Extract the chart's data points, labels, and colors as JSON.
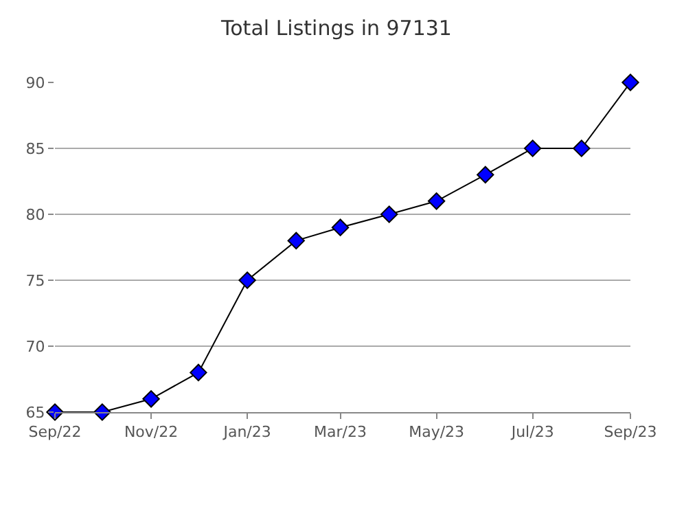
{
  "chart_data": {
    "type": "line",
    "title": "Total Listings in 97131",
    "x": [
      "2022-09",
      "2022-10",
      "2022-11",
      "2022-12",
      "2023-01",
      "2023-02",
      "2023-03",
      "2023-04",
      "2023-05",
      "2023-06",
      "2023-07",
      "2023-08",
      "2023-09"
    ],
    "series": [
      {
        "color": "#0000ff",
        "values": [
          65,
          65,
          66,
          68,
          75,
          78,
          79,
          80,
          81,
          83,
          85,
          85,
          90
        ]
      }
    ],
    "xlim": [
      "2022-09",
      "2023-09"
    ],
    "xticks": [
      {
        "value": "2022-09",
        "label": "Sep/22"
      },
      {
        "value": "2022-11",
        "label": "Nov/22"
      },
      {
        "value": "2023-01",
        "label": "Jan/23"
      },
      {
        "value": "2023-03",
        "label": "Mar/23"
      },
      {
        "value": "2023-05",
        "label": "May/23"
      },
      {
        "value": "2023-07",
        "label": "Jul/23"
      },
      {
        "value": "2023-09",
        "label": "Sep/23"
      }
    ],
    "ylim": [
      65,
      90
    ],
    "yticks": [
      65,
      70,
      75,
      80,
      85,
      90
    ],
    "grid": "y",
    "marker": "diamond",
    "line_style": "solid",
    "legend": false
  }
}
